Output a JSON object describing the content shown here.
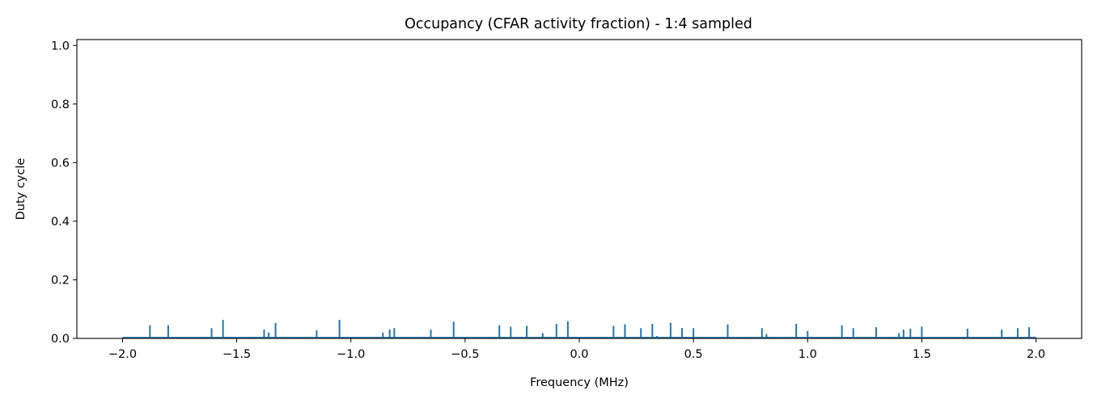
{
  "chart_data": {
    "type": "line",
    "title": "Occupancy (CFAR activity fraction) - 1:4 sampled",
    "xlabel": "Frequency (MHz)",
    "ylabel": "Duty cycle",
    "xlim": [
      -2.2,
      2.2
    ],
    "ylim": [
      0.0,
      1.02
    ],
    "xticks": [
      -2.0,
      -1.5,
      -1.0,
      -0.5,
      0.0,
      0.5,
      1.0,
      1.5,
      2.0
    ],
    "xtick_labels": [
      "−2.0",
      "−1.5",
      "−1.0",
      "−0.5",
      "0.0",
      "0.5",
      "1.0",
      "1.5",
      "2.0"
    ],
    "yticks": [
      0.0,
      0.2,
      0.4,
      0.6,
      0.8,
      1.0
    ],
    "ytick_labels": [
      "0.0",
      "0.2",
      "0.4",
      "0.6",
      "0.8",
      "1.0"
    ],
    "grid": false,
    "color": "#1f77b4",
    "baseline": 0.003,
    "x_range": [
      -2.0,
      2.0
    ],
    "spikes": [
      {
        "x": -1.88,
        "y": 0.045
      },
      {
        "x": -1.8,
        "y": 0.045
      },
      {
        "x": -1.61,
        "y": 0.035
      },
      {
        "x": -1.56,
        "y": 0.063
      },
      {
        "x": -1.38,
        "y": 0.03
      },
      {
        "x": -1.36,
        "y": 0.02
      },
      {
        "x": -1.33,
        "y": 0.053
      },
      {
        "x": -1.15,
        "y": 0.028
      },
      {
        "x": -1.05,
        "y": 0.063
      },
      {
        "x": -0.86,
        "y": 0.02
      },
      {
        "x": -0.83,
        "y": 0.03
      },
      {
        "x": -0.81,
        "y": 0.035
      },
      {
        "x": -0.65,
        "y": 0.03
      },
      {
        "x": -0.55,
        "y": 0.057
      },
      {
        "x": -0.35,
        "y": 0.045
      },
      {
        "x": -0.3,
        "y": 0.04
      },
      {
        "x": -0.23,
        "y": 0.043
      },
      {
        "x": -0.16,
        "y": 0.018
      },
      {
        "x": -0.1,
        "y": 0.05
      },
      {
        "x": -0.05,
        "y": 0.058
      },
      {
        "x": 0.15,
        "y": 0.043
      },
      {
        "x": 0.2,
        "y": 0.048
      },
      {
        "x": 0.27,
        "y": 0.035
      },
      {
        "x": 0.32,
        "y": 0.05
      },
      {
        "x": 0.34,
        "y": 0.008
      },
      {
        "x": 0.4,
        "y": 0.053
      },
      {
        "x": 0.45,
        "y": 0.035
      },
      {
        "x": 0.5,
        "y": 0.035
      },
      {
        "x": 0.65,
        "y": 0.048
      },
      {
        "x": 0.8,
        "y": 0.035
      },
      {
        "x": 0.82,
        "y": 0.015
      },
      {
        "x": 0.95,
        "y": 0.05
      },
      {
        "x": 1.0,
        "y": 0.025
      },
      {
        "x": 1.15,
        "y": 0.045
      },
      {
        "x": 1.2,
        "y": 0.035
      },
      {
        "x": 1.3,
        "y": 0.038
      },
      {
        "x": 1.4,
        "y": 0.018
      },
      {
        "x": 1.42,
        "y": 0.03
      },
      {
        "x": 1.45,
        "y": 0.033
      },
      {
        "x": 1.5,
        "y": 0.04
      },
      {
        "x": 1.7,
        "y": 0.033
      },
      {
        "x": 1.85,
        "y": 0.03
      },
      {
        "x": 1.92,
        "y": 0.035
      },
      {
        "x": 1.97,
        "y": 0.038
      }
    ]
  }
}
